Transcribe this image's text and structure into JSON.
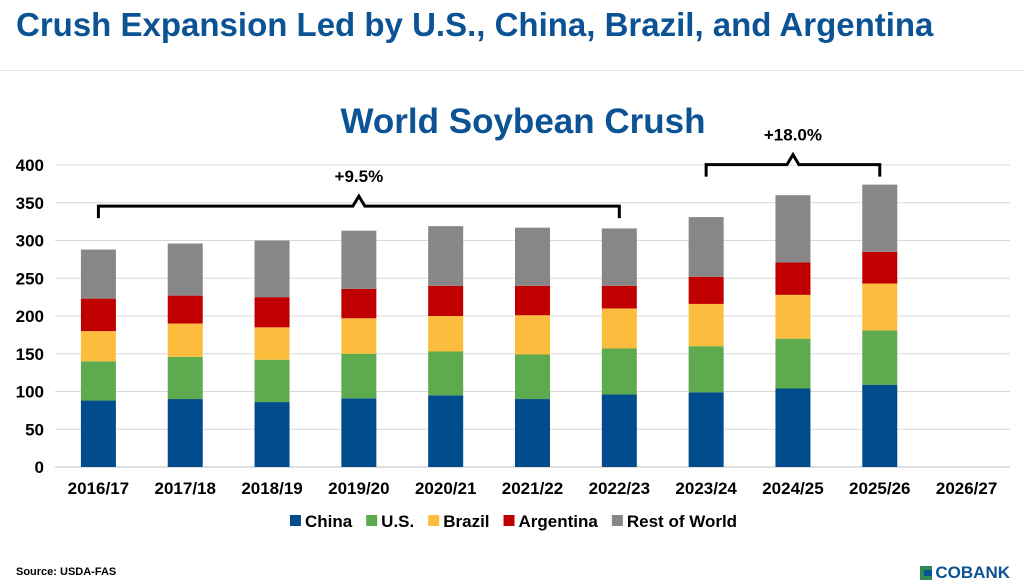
{
  "slide": {
    "title": "Crush Expansion Led by U.S., China, Brazil, and Argentina",
    "source": "Source: USDA-FAS",
    "logo_text": "COBANK"
  },
  "chart_data": {
    "type": "bar",
    "stacked": true,
    "title": "World Soybean Crush",
    "xlabel": "",
    "ylabel": "",
    "ylim": [
      0,
      400
    ],
    "yticks": [
      0,
      50,
      100,
      150,
      200,
      250,
      300,
      350,
      400
    ],
    "grid": true,
    "legend_position": "bottom",
    "categories": [
      "2016/17",
      "2017/18",
      "2018/19",
      "2019/20",
      "2020/21",
      "2021/22",
      "2022/23",
      "2023/24",
      "2024/25",
      "2025/26",
      "2026/27"
    ],
    "series": [
      {
        "name": "China",
        "color": "#004c8c",
        "values": [
          88,
          90,
          86,
          91,
          95,
          90,
          96,
          99,
          104,
          109,
          null
        ]
      },
      {
        "name": "U.S.",
        "color": "#5eab4f",
        "values": [
          52,
          56,
          56,
          59,
          58,
          59,
          61,
          61,
          66,
          72,
          null
        ]
      },
      {
        "name": "Brazil",
        "color": "#fcbd3e",
        "values": [
          40,
          44,
          43,
          47,
          47,
          52,
          53,
          56,
          58,
          62,
          null
        ]
      },
      {
        "name": "Argentina",
        "color": "#c00000",
        "values": [
          43,
          37,
          40,
          39,
          40,
          39,
          30,
          36,
          43,
          42,
          null
        ]
      },
      {
        "name": "Rest of World",
        "color": "#878787",
        "values": [
          65,
          69,
          75,
          77,
          79,
          77,
          76,
          79,
          89,
          89,
          null
        ]
      }
    ],
    "annotations": [
      {
        "text": "+9.5%",
        "from": "2016/17",
        "to": "2022/23"
      },
      {
        "text": "+18.0%",
        "from": "2023/24",
        "to": "2025/26"
      }
    ]
  }
}
